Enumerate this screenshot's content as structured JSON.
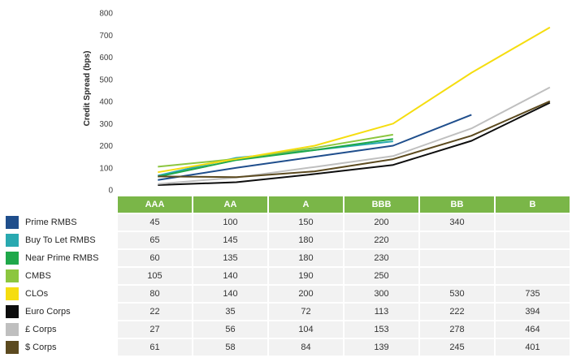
{
  "chart_data": {
    "type": "line",
    "ylabel": "Credit Spread (bps)",
    "ylim": [
      0,
      800
    ],
    "yticks": [
      0,
      100,
      200,
      300,
      400,
      500,
      600,
      700,
      800
    ],
    "grid": false,
    "categories": [
      "AAA",
      "AA",
      "A",
      "BBB",
      "BB",
      "B"
    ],
    "series": [
      {
        "name": "Prime RMBS",
        "color": "#1f4e8c",
        "values": [
          45,
          100,
          150,
          200,
          340,
          null
        ]
      },
      {
        "name": "Buy To Let RMBS",
        "color": "#29a9b0",
        "values": [
          65,
          145,
          180,
          220,
          null,
          null
        ]
      },
      {
        "name": "Near Prime RMBS",
        "color": "#1fa84a",
        "values": [
          60,
          135,
          180,
          230,
          null,
          null
        ]
      },
      {
        "name": "CMBS",
        "color": "#8cc63f",
        "values": [
          105,
          140,
          190,
          250,
          null,
          null
        ]
      },
      {
        "name": "CLOs",
        "color": "#f5dd0f",
        "values": [
          80,
          140,
          200,
          300,
          530,
          735
        ]
      },
      {
        "name": "Euro Corps",
        "color": "#0d0d0d",
        "values": [
          22,
          35,
          72,
          113,
          222,
          394
        ]
      },
      {
        "name": "£ Corps",
        "color": "#bfbfbf",
        "values": [
          27,
          56,
          104,
          153,
          278,
          464
        ]
      },
      {
        "name": "$ Corps",
        "color": "#5c4a1f",
        "values": [
          61,
          58,
          84,
          139,
          245,
          401
        ]
      }
    ]
  }
}
